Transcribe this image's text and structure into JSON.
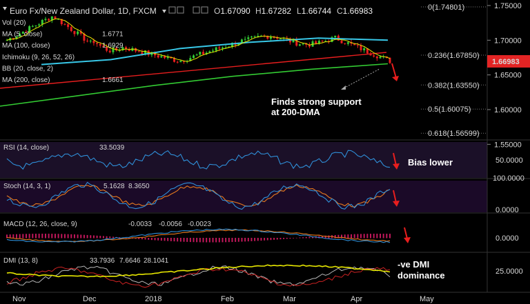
{
  "header": {
    "title": "Euro Fx/New Zealand Dollar, 1D, FXCM",
    "open_label": "O",
    "open": "1.67090",
    "high_label": "H",
    "high": "1.67282",
    "low_label": "L",
    "low": "1.66744",
    "close_label": "C",
    "close": "1.66983"
  },
  "indicators": [
    {
      "label": "Vol (20)",
      "value": "",
      "color": "#ffffff"
    },
    {
      "label": "MA (5, close)",
      "value": "1.6771",
      "color": "#ffff00"
    },
    {
      "label": "MA (100, close)",
      "value": "1.6929",
      "color": "#38c8e8"
    },
    {
      "label": "Ichimoku (9, 26, 52, 26)",
      "value": "",
      "color": "#ffffff"
    },
    {
      "label": "BB (20, close, 2)",
      "value": "",
      "color": "#ffffff"
    },
    {
      "label": "MA (200, close)",
      "value": "1.6661",
      "color": "#33cc33"
    }
  ],
  "price_axis": {
    "ticks": [
      "1.75000",
      "1.70000",
      "1.65000",
      "1.60000",
      "1.55000"
    ],
    "current": "1.66983",
    "current_color": "#e32424"
  },
  "fib_levels": [
    {
      "label": "0(1.74801)",
      "value": 1.74801
    },
    {
      "label": "0.236(1.67850)",
      "value": 1.6785
    },
    {
      "label": "0.382(1.63550)",
      "value": 1.6355
    },
    {
      "label": "0.5(1.60075)",
      "value": 1.60075
    },
    {
      "label": "0.618(1.56599)",
      "value": 1.56599
    }
  ],
  "annotations": {
    "support_line1": "Finds strong support",
    "support_line2": "at 200-DMA",
    "rsi_note": "Bias lower",
    "dmi_line1": "-ve DMI",
    "dmi_line2": "dominance"
  },
  "rsi": {
    "label": "RSI (14, close)",
    "value": "33.5039",
    "ticks": [
      "50.0000"
    ]
  },
  "stoch": {
    "label": "Stoch (14, 3, 1)",
    "k": "5.1628",
    "d": "8.3650",
    "ticks": [
      "100.0000",
      "0.0000"
    ]
  },
  "macd": {
    "label": "MACD (12, 26, close, 9)",
    "hist": "-0.0033",
    "macd": "-0.0056",
    "signal": "-0.0023",
    "ticks": [
      "0.0000"
    ]
  },
  "dmi": {
    "label": "DMI (13, 8)",
    "adx": "33.7936",
    "plus_di": "7.6646",
    "minus_di": "28.1041",
    "ticks": [
      "25.0000"
    ]
  },
  "time_axis": [
    "Nov",
    "Dec",
    "2018",
    "Feb",
    "Mar",
    "Apr",
    "May"
  ],
  "chart_data": {
    "type": "line",
    "title": "Euro Fx/New Zealand Dollar, 1D, FXCM",
    "x": [
      "Nov",
      "Dec",
      "2018",
      "Feb",
      "Mar",
      "Apr"
    ],
    "ylim": [
      1.55,
      1.75
    ],
    "series": [
      {
        "name": "MA (100, close)",
        "values": [
          1.665,
          1.672,
          1.688,
          1.697,
          1.703,
          1.7
        ]
      },
      {
        "name": "MA (200, close)",
        "values": [
          1.605,
          1.62,
          1.635,
          1.648,
          1.658,
          1.6661
        ]
      }
    ],
    "grid": false
  }
}
